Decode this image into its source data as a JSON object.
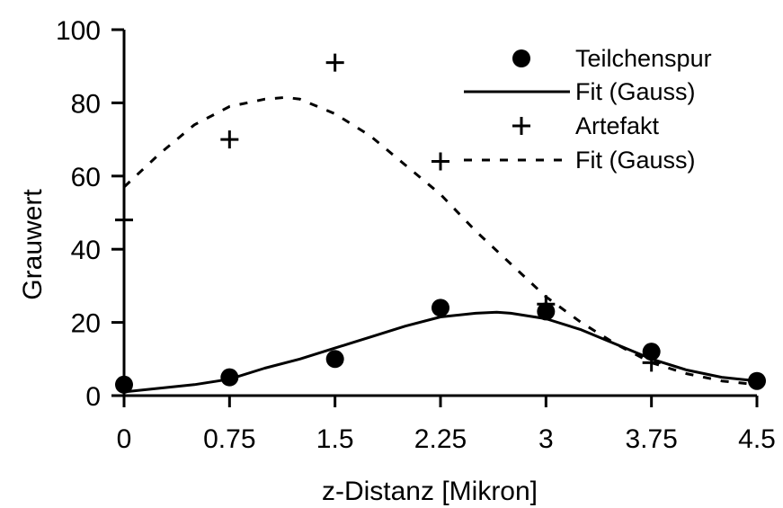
{
  "chart_data": {
    "type": "scatter",
    "xlabel": "z-Distanz [Mikron]",
    "ylabel": "Grauwert",
    "xlim": [
      0,
      4.5
    ],
    "ylim": [
      0,
      100
    ],
    "x_ticks": [
      "0",
      "0.75",
      "1.5",
      "2.25",
      "3",
      "3.75",
      "4.5"
    ],
    "y_ticks": [
      "0",
      "20",
      "40",
      "60",
      "80",
      "100"
    ],
    "grid": false,
    "legend_position": "top-right",
    "series": [
      {
        "name": "Teilchenspur",
        "kind": "points",
        "marker": "filled-circle",
        "x": [
          0,
          0.75,
          1.5,
          2.25,
          3,
          3.75,
          4.5
        ],
        "y": [
          3,
          5,
          10,
          24,
          23,
          12,
          4
        ]
      },
      {
        "name": "Fit (Gauss)",
        "kind": "line",
        "style": "solid",
        "x": [
          0,
          0.5,
          0.75,
          1.0,
          1.25,
          1.5,
          1.75,
          2.0,
          2.25,
          2.5,
          2.65,
          2.75,
          3.0,
          3.25,
          3.5,
          3.75,
          4.0,
          4.25,
          4.5
        ],
        "y": [
          1,
          3,
          4.5,
          7.5,
          10,
          13,
          16,
          19,
          21.5,
          22.5,
          22.8,
          22.5,
          21,
          18,
          14,
          10,
          7,
          5,
          4
        ]
      },
      {
        "name": "Artefakt",
        "kind": "points",
        "marker": "plus",
        "x": [
          0,
          0.75,
          1.5,
          2.25,
          3,
          3.75
        ],
        "y": [
          48,
          70,
          91,
          64,
          25,
          9
        ]
      },
      {
        "name": "Fit (Gauss)",
        "kind": "line",
        "style": "dashed",
        "x": [
          0,
          0.25,
          0.5,
          0.75,
          1.0,
          1.15,
          1.25,
          1.5,
          1.75,
          2.0,
          2.25,
          2.5,
          2.75,
          3.0,
          3.25,
          3.5,
          3.75,
          4.0,
          4.25,
          4.5
        ],
        "y": [
          57,
          66,
          74,
          79,
          81,
          81.5,
          81,
          77,
          71,
          63,
          55,
          45,
          36,
          27,
          20,
          14,
          9,
          6,
          4,
          3
        ]
      }
    ]
  },
  "colors": {
    "ink": "#000000",
    "background": "#ffffff"
  }
}
